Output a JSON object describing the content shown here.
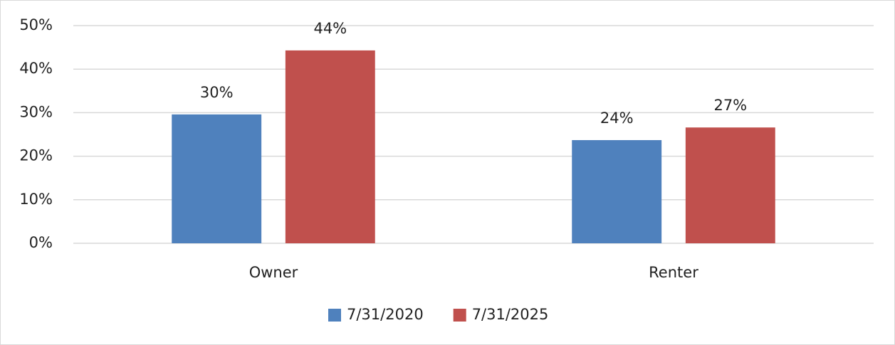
{
  "chart_data": {
    "type": "bar",
    "categories": [
      "Owner",
      "Renter"
    ],
    "series": [
      {
        "name": "7/31/2020",
        "color": "#4f81bd",
        "values": [
          29.6,
          23.7
        ],
        "value_labels": [
          "30%",
          "24%"
        ]
      },
      {
        "name": "7/31/2025",
        "color": "#c0504d",
        "values": [
          44.3,
          26.6
        ],
        "value_labels": [
          "44%",
          "27%"
        ]
      }
    ],
    "ylim": [
      0,
      50
    ],
    "yticks": [
      {
        "value": 0,
        "label": "0%"
      },
      {
        "value": 10,
        "label": "10%"
      },
      {
        "value": 20,
        "label": "20%"
      },
      {
        "value": 30,
        "label": "30%"
      },
      {
        "value": 40,
        "label": "40%"
      },
      {
        "value": 50,
        "label": "50%"
      }
    ],
    "grid": true,
    "legend": "bottom"
  }
}
